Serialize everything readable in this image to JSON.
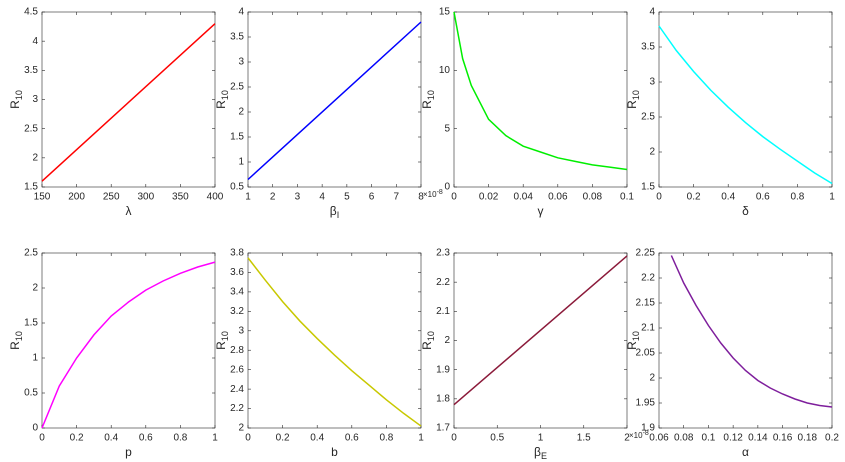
{
  "chart_data": [
    {
      "type": "line",
      "color": "#ff0000",
      "xlabel": "λ",
      "ylabel": "R",
      "ylabel_sub": "10",
      "x": [
        150,
        400
      ],
      "values": [
        1.6,
        4.3
      ],
      "xlim": [
        150,
        400
      ],
      "xticks": [
        150,
        200,
        250,
        300,
        350,
        400
      ],
      "ylim": [
        1.5,
        4.5
      ],
      "yticks": [
        1.5,
        2,
        2.5,
        3,
        3.5,
        4,
        4.5
      ]
    },
    {
      "type": "line",
      "color": "#0000ff",
      "xlabel": "β",
      "xlabel_sub": "I",
      "ylabel": "R",
      "ylabel_sub": "10",
      "xmultiplier": "×10",
      "xmultiplier_exp": "-8",
      "x": [
        1,
        8
      ],
      "values": [
        0.65,
        3.8
      ],
      "xlim": [
        1,
        8
      ],
      "xticks": [
        1,
        2,
        3,
        4,
        5,
        6,
        7,
        8
      ],
      "ylim": [
        0.5,
        4
      ],
      "yticks": [
        0.5,
        1,
        1.5,
        2,
        2.5,
        3,
        3.5,
        4
      ]
    },
    {
      "type": "line",
      "color": "#00ee00",
      "xlabel": "γ",
      "ylabel": "R",
      "ylabel_sub": "10",
      "x": [
        0,
        0.005,
        0.01,
        0.02,
        0.03,
        0.04,
        0.05,
        0.06,
        0.07,
        0.08,
        0.09,
        0.1
      ],
      "values": [
        15,
        11,
        8.7,
        5.8,
        4.4,
        3.5,
        3.0,
        2.5,
        2.2,
        1.9,
        1.7,
        1.5
      ],
      "xlim": [
        0,
        0.1
      ],
      "xticks": [
        0,
        0.02,
        0.04,
        0.06,
        0.08,
        0.1
      ],
      "ylim": [
        0,
        15
      ],
      "yticks": [
        0,
        5,
        10,
        15
      ]
    },
    {
      "type": "line",
      "color": "#00ffff",
      "xlabel": "δ",
      "ylabel": "R",
      "ylabel_sub": "10",
      "x": [
        0,
        0.1,
        0.2,
        0.3,
        0.4,
        0.5,
        0.6,
        0.7,
        0.8,
        0.9,
        1
      ],
      "values": [
        3.8,
        3.45,
        3.15,
        2.88,
        2.64,
        2.42,
        2.22,
        2.04,
        1.87,
        1.7,
        1.55
      ],
      "xlim": [
        0,
        1
      ],
      "xticks": [
        0,
        0.2,
        0.4,
        0.6,
        0.8,
        1
      ],
      "ylim": [
        1.5,
        4
      ],
      "yticks": [
        1.5,
        2,
        2.5,
        3,
        3.5,
        4
      ]
    },
    {
      "type": "line",
      "color": "#ff00ff",
      "xlabel": "p",
      "ylabel": "R",
      "ylabel_sub": "10",
      "x": [
        0,
        0.1,
        0.2,
        0.3,
        0.4,
        0.5,
        0.6,
        0.7,
        0.8,
        0.9,
        1
      ],
      "values": [
        0,
        0.6,
        1.0,
        1.33,
        1.6,
        1.8,
        1.97,
        2.1,
        2.21,
        2.3,
        2.37
      ],
      "xlim": [
        0,
        1
      ],
      "xticks": [
        0,
        0.2,
        0.4,
        0.6,
        0.8,
        1
      ],
      "ylim": [
        0,
        2.5
      ],
      "yticks": [
        0,
        0.5,
        1,
        1.5,
        2,
        2.5
      ]
    },
    {
      "type": "line",
      "color": "#c8c800",
      "xlabel": "b",
      "ylabel": "R",
      "ylabel_sub": "10",
      "x": [
        0,
        0.1,
        0.2,
        0.3,
        0.4,
        0.5,
        0.6,
        0.7,
        0.8,
        0.9,
        1
      ],
      "values": [
        3.75,
        3.52,
        3.3,
        3.1,
        2.92,
        2.75,
        2.59,
        2.44,
        2.29,
        2.15,
        2.02
      ],
      "xlim": [
        0,
        1
      ],
      "xticks": [
        0,
        0.2,
        0.4,
        0.6,
        0.8,
        1
      ],
      "ylim": [
        2,
        3.8
      ],
      "yticks": [
        2,
        2.2,
        2.4,
        2.6,
        2.8,
        3,
        3.2,
        3.4,
        3.6,
        3.8
      ]
    },
    {
      "type": "line",
      "color": "#8b1a3a",
      "xlabel": "β",
      "xlabel_sub": "E",
      "ylabel": "R",
      "ylabel_sub": "10",
      "xmultiplier": "×10",
      "xmultiplier_exp": "-8",
      "x": [
        0,
        2
      ],
      "values": [
        1.78,
        2.29
      ],
      "xlim": [
        0,
        2
      ],
      "xticks": [
        0,
        0.5,
        1,
        1.5,
        2
      ],
      "ylim": [
        1.7,
        2.3
      ],
      "yticks": [
        1.7,
        1.8,
        1.9,
        2,
        2.1,
        2.2,
        2.3
      ]
    },
    {
      "type": "line",
      "color": "#7e1e9c",
      "xlabel": "α",
      "ylabel": "R",
      "ylabel_sub": "10",
      "x": [
        0.07,
        0.08,
        0.09,
        0.1,
        0.11,
        0.12,
        0.13,
        0.14,
        0.15,
        0.16,
        0.17,
        0.18,
        0.19,
        0.2
      ],
      "values": [
        2.245,
        2.19,
        2.145,
        2.105,
        2.07,
        2.04,
        2.015,
        1.995,
        1.98,
        1.968,
        1.958,
        1.95,
        1.945,
        1.942
      ],
      "xlim": [
        0.06,
        0.2
      ],
      "xticks": [
        0.06,
        0.08,
        0.1,
        0.12,
        0.14,
        0.16,
        0.18,
        0.2
      ],
      "ylim": [
        1.9,
        2.25
      ],
      "yticks": [
        1.9,
        1.95,
        2,
        2.05,
        2.1,
        2.15,
        2.2,
        2.25
      ]
    }
  ]
}
